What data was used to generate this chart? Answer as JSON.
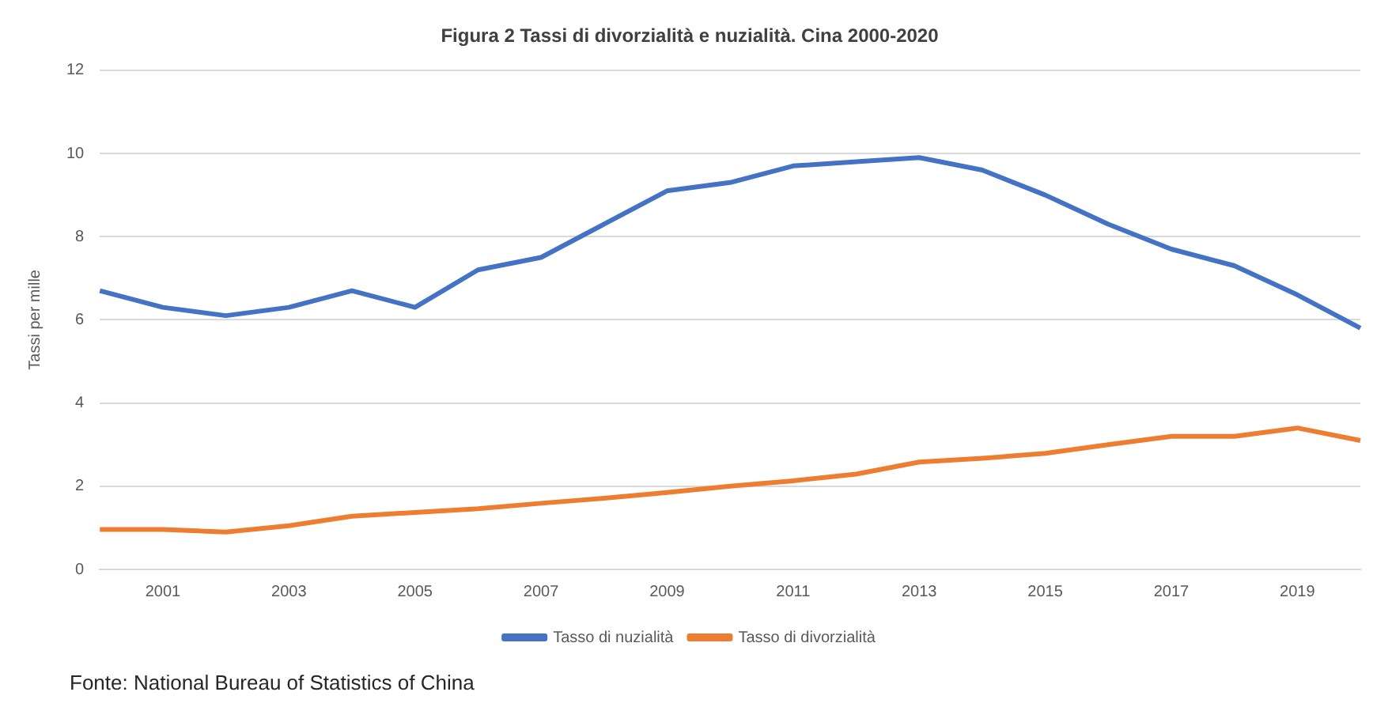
{
  "chart_data": {
    "type": "line",
    "title": "Figura 2 Tassi di divorzialità e nuzialità. Cina 2000-2020",
    "ylabel": "Tassi per mille",
    "categories": [
      null,
      "2001",
      null,
      "2003",
      null,
      "2005",
      null,
      "2007",
      null,
      "2009",
      null,
      "2011",
      null,
      "2013",
      null,
      "2015",
      null,
      "2017",
      null,
      "2019",
      null
    ],
    "series": [
      {
        "name": "Tasso di nuzialità",
        "color": "#4472c4",
        "values": [
          6.7,
          6.3,
          6.1,
          6.3,
          6.7,
          6.3,
          7.2,
          7.5,
          8.3,
          9.1,
          9.3,
          9.7,
          9.8,
          9.9,
          9.6,
          9.0,
          8.3,
          7.7,
          7.3,
          6.6,
          5.8
        ]
      },
      {
        "name": "Tasso di divorzialità",
        "color": "#ed7d31",
        "values": [
          0.96,
          0.96,
          0.9,
          1.05,
          1.28,
          1.37,
          1.46,
          1.59,
          1.71,
          1.85,
          2.0,
          2.13,
          2.29,
          2.58,
          2.67,
          2.79,
          3.0,
          3.2,
          3.2,
          3.4,
          3.1
        ]
      }
    ],
    "ylim": [
      0,
      12
    ],
    "yticks": [
      0,
      2,
      4,
      6,
      8,
      10,
      12
    ],
    "grid": "y",
    "legend": "bottom",
    "marker": "none",
    "line_style": "solid",
    "annotations": [
      "Fonte: National Bureau of Statistics of China"
    ]
  }
}
